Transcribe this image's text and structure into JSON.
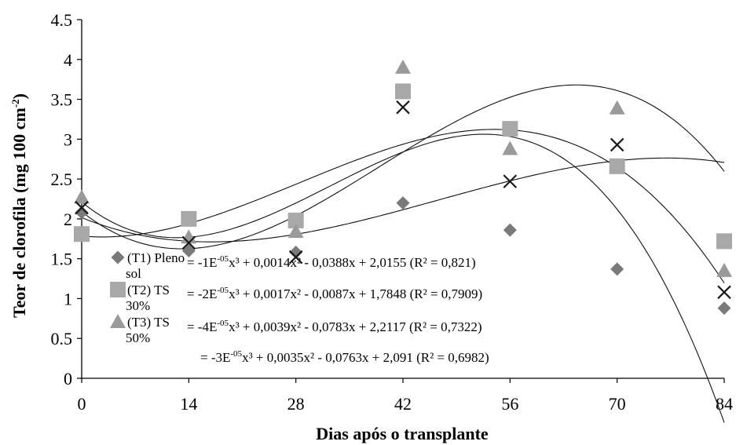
{
  "chart_data": {
    "type": "scatter",
    "xlabel": "Dias após o transplante",
    "ylabel": "Teor de clorofila (mg 100 cm-2)",
    "ylabel_parts": {
      "main": "Teor de clorofila (mg 100 cm",
      "sup": "-2",
      "end": ")"
    },
    "xlim": [
      0,
      84
    ],
    "ylim": [
      0,
      4.5
    ],
    "x_ticks": [
      "0",
      "14",
      "28",
      "42",
      "56",
      "70",
      "84"
    ],
    "y_ticks": [
      "0",
      "0.5",
      "1",
      "1.5",
      "2",
      "2.5",
      "3",
      "3.5",
      "4",
      "4.5"
    ],
    "grid": false,
    "legend_position": "lower-left",
    "series": [
      {
        "name": "(T1) Pleno sol",
        "legend_lines": [
          "(T1) Pleno",
          "sol"
        ],
        "marker": "diamond",
        "color": "#7a7a7a",
        "x": [
          0,
          14,
          28,
          42,
          56,
          70,
          84
        ],
        "y": [
          2.08,
          1.6,
          1.58,
          2.2,
          1.86,
          1.37,
          0.88
        ]
      },
      {
        "name": "(T2) TS 30%",
        "legend_lines": [
          "(T2) TS",
          "30%"
        ],
        "marker": "square",
        "color": "#a8a8a8",
        "x": [
          0,
          14,
          28,
          42,
          56,
          70,
          84
        ],
        "y": [
          1.81,
          2.0,
          1.98,
          3.6,
          3.13,
          2.66,
          1.72
        ]
      },
      {
        "name": "(T3) TS 50%",
        "legend_lines": [
          "(T3) TS",
          "50%"
        ],
        "marker": "triangle",
        "color": "#9a9a9a",
        "x": [
          0,
          14,
          28,
          42,
          56,
          70,
          84
        ],
        "y": [
          2.27,
          1.77,
          1.84,
          3.9,
          2.88,
          3.39,
          1.35
        ]
      },
      {
        "name": "",
        "marker": "x",
        "color": "#1a1a1a",
        "x": [
          0,
          14,
          28,
          42,
          56,
          70,
          84
        ],
        "y": [
          2.14,
          1.7,
          1.52,
          3.4,
          2.47,
          2.93,
          1.08
        ]
      }
    ],
    "trendlines": [
      {
        "a": -1e-05,
        "b": 0.0014,
        "c": -0.0388,
        "d": 2.0155
      },
      {
        "a": -2e-05,
        "b": 0.0017,
        "c": -0.0087,
        "d": 1.7848
      },
      {
        "a": -4e-05,
        "b": 0.0039,
        "c": -0.0783,
        "d": 2.2117
      },
      {
        "a": -3e-05,
        "b": 0.0035,
        "c": -0.0763,
        "d": 2.091
      }
    ],
    "equations": [
      {
        "prefix": "= -1E",
        "exp": "-05",
        "rest": "x³ + 0,0014x² - 0,0388x + 2,0155 (R² = 0,821)"
      },
      {
        "prefix": "= -2E",
        "exp": "-05",
        "rest": "x³ + 0,0017x² - 0,0087x + 1,7848 (R² = 0,7909)"
      },
      {
        "prefix": "= -4E",
        "exp": "-05",
        "rest": "x³ + 0,0039x² - 0,0783x + 2,2117 (R² = 0,7322)"
      },
      {
        "prefix": "= -3E",
        "exp": "-05",
        "rest": "x³ + 0,0035x² - 0,0763x + 2,091 (R² = 0,6982)"
      }
    ]
  }
}
